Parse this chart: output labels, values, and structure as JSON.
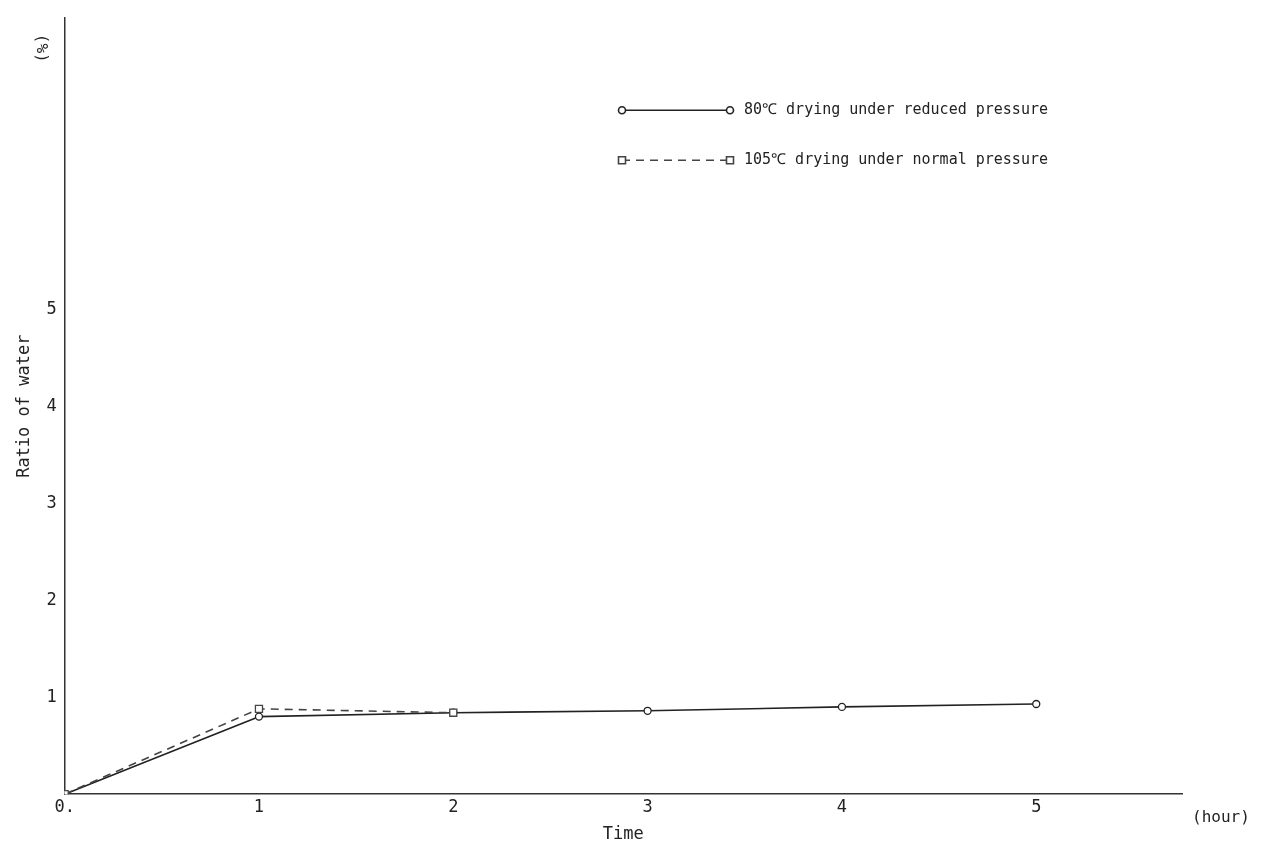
{
  "chart_data": {
    "type": "line",
    "xlabel": "Time",
    "ylabel": "Ratio of water",
    "annotations": [
      "(%)",
      "(hour)"
    ],
    "xlim": [
      0,
      5.75
    ],
    "xticks": [
      {
        "value": 0,
        "label": "0."
      },
      1,
      2,
      3,
      4,
      5
    ],
    "ylim": [
      0,
      8
    ],
    "yticks": [
      {
        "value": 0,
        "label": null
      },
      1,
      2,
      3,
      4,
      5
    ],
    "grid": false,
    "legend": "top right",
    "series": [
      {
        "name": "80℃ drying under reduced pressure",
        "color": "#222222",
        "x": [
          0,
          1,
          2,
          3,
          4,
          5
        ],
        "values": [
          0,
          0.8,
          0.84,
          0.86,
          0.9,
          0.93
        ],
        "marker": "circle",
        "line_style": "solid"
      },
      {
        "name": "105℃ drying under normal pressure",
        "color": "#444444",
        "x": [
          0,
          1,
          2
        ],
        "values": [
          0,
          0.88,
          0.84
        ],
        "marker": "square",
        "line_style": "dashed"
      }
    ]
  }
}
